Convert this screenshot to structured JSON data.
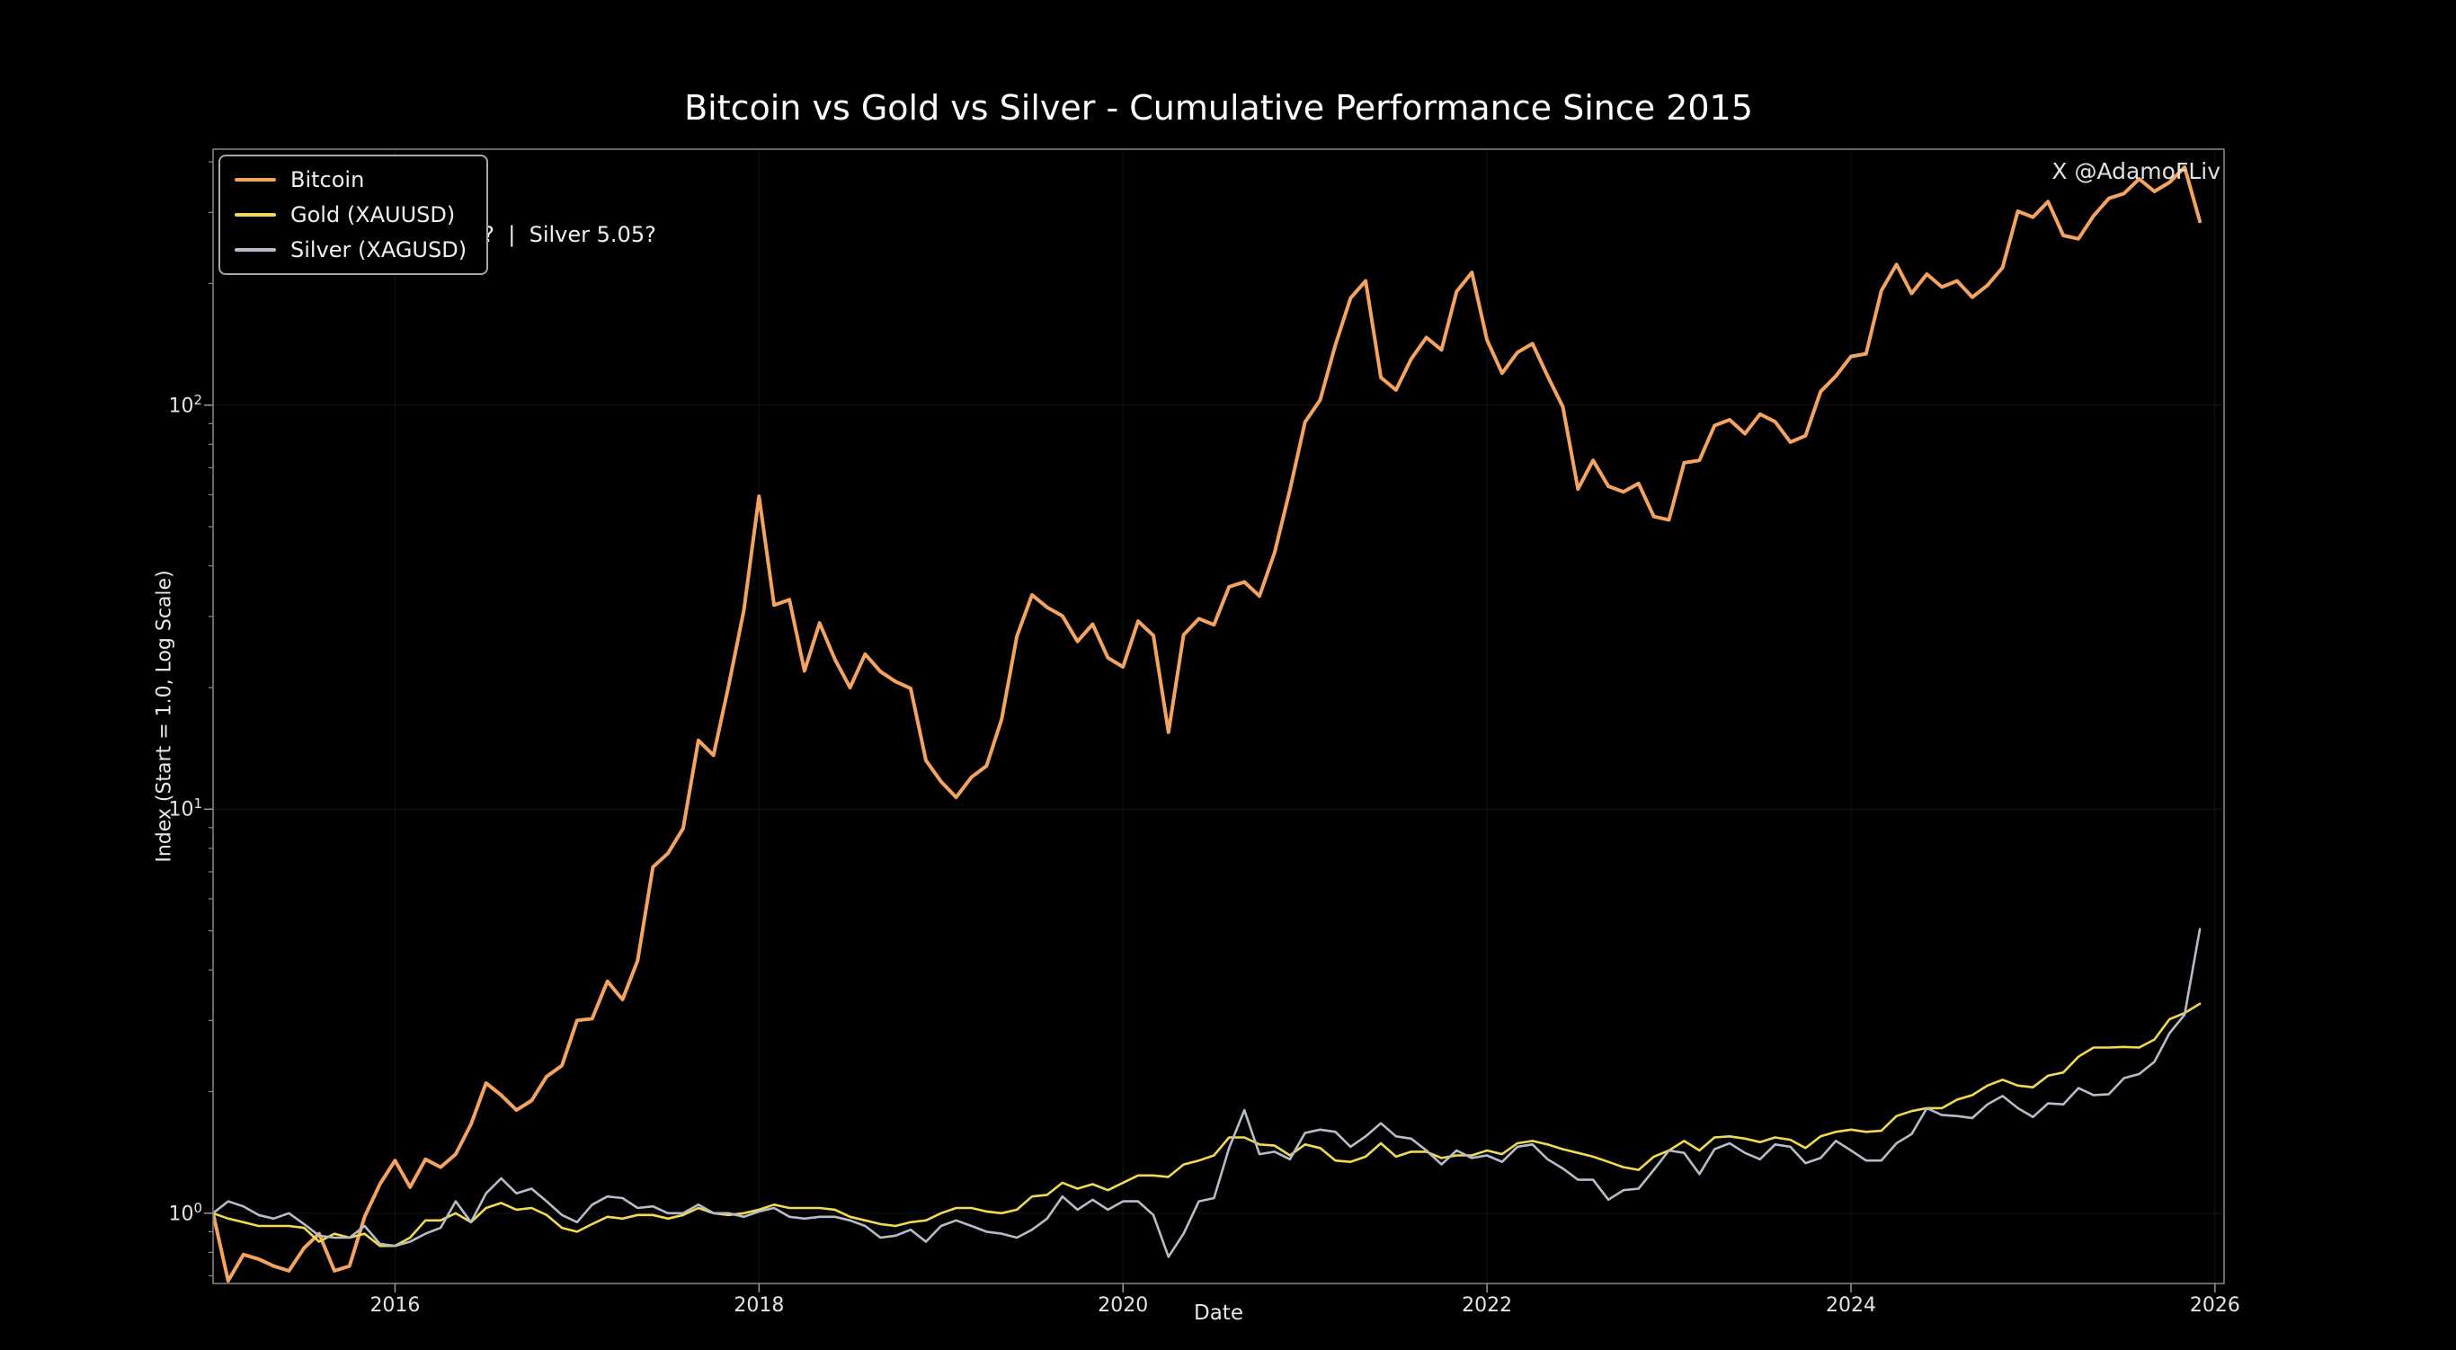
{
  "title": "Bitcoin vs Gold vs Silver - Cumulative Performance Since 2015",
  "watermark": "X @AdamoFLiv",
  "annotation_fragment": "3?  |  Silver 5.05?",
  "axes": {
    "x_label": "Date",
    "y_label": "Index (Start = 1.0, Log Scale)",
    "x_ticks": [
      2016,
      2018,
      2020,
      2022,
      2024,
      2026
    ],
    "y_tick_exponents": [
      0,
      1,
      2
    ]
  },
  "legend": {
    "items": [
      {
        "label": "Bitcoin"
      },
      {
        "label": "Gold (XAUUSD)"
      },
      {
        "label": "Silver (XAGUSD)"
      }
    ]
  },
  "colors": {
    "background": "#000000",
    "text": "#ffffff",
    "spine": "#888888",
    "bitcoin": "#f4a460",
    "gold": "#f2da4e",
    "silver": "#b6bcc8"
  },
  "chart_data": {
    "type": "line",
    "title": "Bitcoin vs Gold vs Silver - Cumulative Performance Since 2015",
    "xlabel": "Date",
    "ylabel": "Index (Start = 1.0, Log Scale)",
    "y_scale": "log",
    "xlim": [
      2015.0,
      2026.05
    ],
    "ylim": [
      0.67,
      430
    ],
    "grid": true,
    "legend_position": "upper-left",
    "x": [
      2015.0,
      2015.083,
      2015.167,
      2015.25,
      2015.333,
      2015.417,
      2015.5,
      2015.583,
      2015.667,
      2015.75,
      2015.833,
      2015.917,
      2016.0,
      2016.083,
      2016.167,
      2016.25,
      2016.333,
      2016.417,
      2016.5,
      2016.583,
      2016.667,
      2016.75,
      2016.833,
      2016.917,
      2017.0,
      2017.083,
      2017.167,
      2017.25,
      2017.333,
      2017.417,
      2017.5,
      2017.583,
      2017.667,
      2017.75,
      2017.833,
      2017.917,
      2018.0,
      2018.083,
      2018.167,
      2018.25,
      2018.333,
      2018.417,
      2018.5,
      2018.583,
      2018.667,
      2018.75,
      2018.833,
      2018.917,
      2019.0,
      2019.083,
      2019.167,
      2019.25,
      2019.333,
      2019.417,
      2019.5,
      2019.583,
      2019.667,
      2019.75,
      2019.833,
      2019.917,
      2020.0,
      2020.083,
      2020.167,
      2020.25,
      2020.333,
      2020.417,
      2020.5,
      2020.583,
      2020.667,
      2020.75,
      2020.833,
      2020.917,
      2021.0,
      2021.083,
      2021.167,
      2021.25,
      2021.333,
      2021.417,
      2021.5,
      2021.583,
      2021.667,
      2021.75,
      2021.833,
      2021.917,
      2022.0,
      2022.083,
      2022.167,
      2022.25,
      2022.333,
      2022.417,
      2022.5,
      2022.583,
      2022.667,
      2022.75,
      2022.833,
      2022.917,
      2023.0,
      2023.083,
      2023.167,
      2023.25,
      2023.333,
      2023.417,
      2023.5,
      2023.583,
      2023.667,
      2023.75,
      2023.833,
      2023.917,
      2024.0,
      2024.083,
      2024.167,
      2024.25,
      2024.333,
      2024.417,
      2024.5,
      2024.583,
      2024.667,
      2024.75,
      2024.833,
      2024.917,
      2025.0,
      2025.083,
      2025.167,
      2025.25,
      2025.333,
      2025.417,
      2025.5,
      2025.583,
      2025.667,
      2025.75,
      2025.833,
      2025.917
    ],
    "series": [
      {
        "name": "Bitcoin",
        "color": "#f4a460",
        "width": 4,
        "values": [
          1.0,
          0.68,
          0.79,
          0.77,
          0.74,
          0.72,
          0.82,
          0.89,
          0.72,
          0.74,
          0.98,
          1.18,
          1.35,
          1.16,
          1.36,
          1.3,
          1.4,
          1.66,
          2.1,
          1.96,
          1.8,
          1.9,
          2.18,
          2.32,
          3.0,
          3.03,
          3.75,
          3.38,
          4.22,
          7.19,
          7.78,
          8.96,
          14.8,
          13.6,
          20.2,
          31.1,
          59.5,
          32.0,
          33.0,
          22.0,
          28.9,
          23.5,
          20.0,
          24.2,
          21.9,
          20.7,
          19.9,
          13.2,
          11.7,
          10.7,
          12.0,
          12.8,
          16.7,
          26.8,
          33.9,
          31.6,
          30.1,
          26.0,
          28.7,
          23.7,
          22.5,
          29.2,
          26.9,
          15.5,
          27.0,
          29.6,
          28.6,
          35.5,
          36.5,
          33.7,
          43.2,
          61.7,
          90.8,
          103,
          141,
          184,
          203,
          117,
          109,
          130,
          147,
          137,
          191,
          213,
          145,
          120,
          135,
          142,
          118,
          99,
          62,
          73,
          63,
          61,
          64,
          53,
          52,
          72,
          73,
          89,
          92,
          85,
          95,
          91,
          81,
          84,
          108,
          118,
          132,
          134,
          192,
          223,
          189,
          211,
          196,
          203,
          185,
          198,
          219,
          302,
          292,
          319,
          263,
          258,
          294,
          325,
          334,
          363,
          338,
          356,
          388,
          285
        ]
      },
      {
        "name": "Gold (XAUUSD)",
        "color": "#f2da4e",
        "width": 2.6,
        "values": [
          1.0,
          0.97,
          0.95,
          0.93,
          0.93,
          0.93,
          0.92,
          0.85,
          0.89,
          0.87,
          0.89,
          0.83,
          0.83,
          0.87,
          0.96,
          0.96,
          1.0,
          0.95,
          1.03,
          1.06,
          1.02,
          1.03,
          0.99,
          0.92,
          0.9,
          0.94,
          0.98,
          0.97,
          0.99,
          0.99,
          0.97,
          0.99,
          1.03,
          1.0,
          0.99,
          1.0,
          1.02,
          1.05,
          1.03,
          1.03,
          1.03,
          1.02,
          0.98,
          0.96,
          0.94,
          0.93,
          0.95,
          0.96,
          1.0,
          1.03,
          1.03,
          1.01,
          1.0,
          1.02,
          1.1,
          1.11,
          1.19,
          1.15,
          1.18,
          1.14,
          1.19,
          1.24,
          1.24,
          1.23,
          1.32,
          1.35,
          1.39,
          1.54,
          1.54,
          1.48,
          1.47,
          1.39,
          1.48,
          1.45,
          1.35,
          1.34,
          1.38,
          1.49,
          1.38,
          1.42,
          1.42,
          1.37,
          1.39,
          1.39,
          1.43,
          1.4,
          1.49,
          1.51,
          1.48,
          1.44,
          1.41,
          1.38,
          1.34,
          1.3,
          1.28,
          1.38,
          1.43,
          1.51,
          1.43,
          1.54,
          1.55,
          1.53,
          1.5,
          1.54,
          1.52,
          1.45,
          1.55,
          1.59,
          1.61,
          1.59,
          1.6,
          1.74,
          1.79,
          1.82,
          1.82,
          1.91,
          1.96,
          2.07,
          2.14,
          2.07,
          2.05,
          2.19,
          2.23,
          2.44,
          2.57,
          2.57,
          2.58,
          2.57,
          2.69,
          3.02,
          3.13,
          3.3
        ]
      },
      {
        "name": "Silver (XAGUSD)",
        "color": "#b6bcc8",
        "width": 2.6,
        "values": [
          1.0,
          1.07,
          1.04,
          0.99,
          0.97,
          1.0,
          0.94,
          0.88,
          0.87,
          0.87,
          0.93,
          0.84,
          0.83,
          0.85,
          0.89,
          0.92,
          1.07,
          0.95,
          1.12,
          1.22,
          1.12,
          1.15,
          1.07,
          0.99,
          0.95,
          1.05,
          1.1,
          1.09,
          1.03,
          1.04,
          1.0,
          1.0,
          1.05,
          1.0,
          1.0,
          0.98,
          1.01,
          1.03,
          0.98,
          0.97,
          0.98,
          0.98,
          0.96,
          0.93,
          0.87,
          0.88,
          0.91,
          0.85,
          0.93,
          0.96,
          0.93,
          0.9,
          0.89,
          0.87,
          0.91,
          0.97,
          1.1,
          1.02,
          1.08,
          1.02,
          1.07,
          1.07,
          0.99,
          0.78,
          0.89,
          1.07,
          1.09,
          1.45,
          1.8,
          1.4,
          1.42,
          1.36,
          1.58,
          1.61,
          1.59,
          1.46,
          1.55,
          1.67,
          1.55,
          1.53,
          1.43,
          1.32,
          1.43,
          1.37,
          1.39,
          1.34,
          1.46,
          1.48,
          1.36,
          1.29,
          1.21,
          1.21,
          1.08,
          1.14,
          1.15,
          1.28,
          1.43,
          1.41,
          1.25,
          1.44,
          1.49,
          1.41,
          1.36,
          1.48,
          1.46,
          1.33,
          1.37,
          1.51,
          1.43,
          1.35,
          1.35,
          1.49,
          1.57,
          1.82,
          1.75,
          1.74,
          1.72,
          1.86,
          1.95,
          1.82,
          1.73,
          1.87,
          1.86,
          2.04,
          1.96,
          1.97,
          2.16,
          2.21,
          2.37,
          2.79,
          3.1,
          5.05
        ]
      }
    ]
  }
}
